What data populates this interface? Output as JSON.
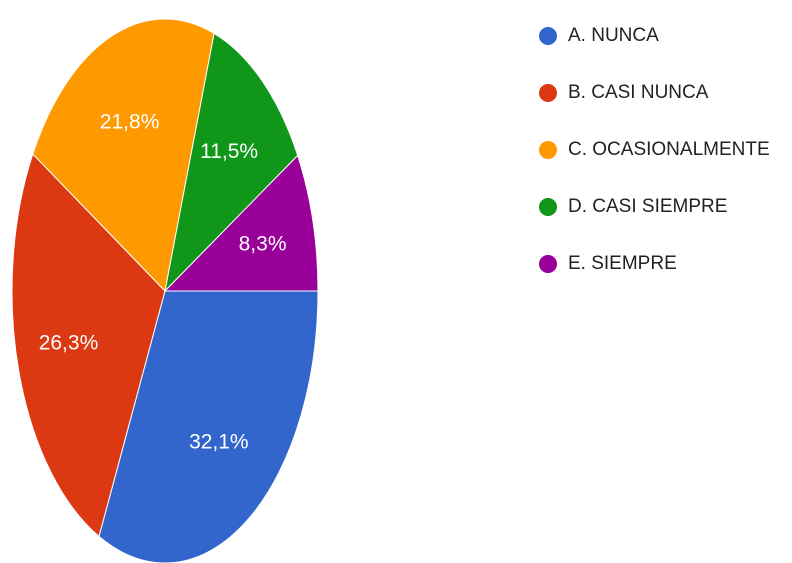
{
  "chart_data": {
    "type": "pie",
    "categories": [
      "A. NUNCA",
      "B. CASI NUNCA",
      "C. OCASIONALMENTE",
      "D. CASI SIEMPRE",
      "E. SIEMPRE"
    ],
    "values": [
      32.1,
      26.3,
      21.8,
      11.5,
      8.3
    ],
    "value_labels": [
      "32,1%",
      "26,3%",
      "21,8%",
      "11,5%",
      "8,3%"
    ],
    "colors": [
      "#3366cc",
      "#dc3912",
      "#ff9900",
      "#109618",
      "#990099"
    ],
    "legend": "right"
  }
}
